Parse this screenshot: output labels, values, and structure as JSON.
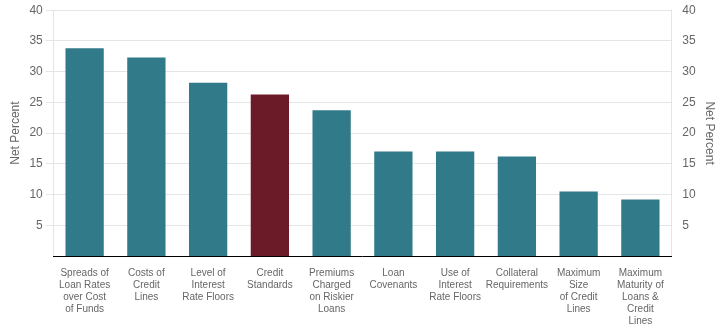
{
  "chart_data": {
    "type": "bar",
    "categories": [
      "Spreads of Loan Rates\nover Cost of Funds",
      "Costs of Credit Lines",
      "Level of Interest Rate Floors",
      "Credit Standards",
      "Premiums Charged\non Riskier Loans",
      "Loan Covenants",
      "Use of Interest Rate Floors",
      "Collateral Requirements",
      "Maximum Size\nof Credit Lines",
      "Maximum Maturity of\nLoans & Credit Lines"
    ],
    "values": [
      33.8,
      32.3,
      28.2,
      26.3,
      23.7,
      17.0,
      17.0,
      16.2,
      10.5,
      9.2
    ],
    "colors": [
      "#317a8a",
      "#317a8a",
      "#317a8a",
      "#6b1a28",
      "#317a8a",
      "#317a8a",
      "#317a8a",
      "#317a8a",
      "#317a8a",
      "#317a8a"
    ],
    "ylabel": "Net Percent",
    "y2label": "Net Percent",
    "ylim": [
      0,
      40
    ],
    "yticks": [
      5,
      10,
      15,
      20,
      25,
      30,
      35,
      40
    ],
    "y2lim": [
      0,
      40
    ],
    "y2ticks": [
      5,
      10,
      15,
      20,
      25,
      30,
      35,
      40
    ],
    "grid": true
  }
}
